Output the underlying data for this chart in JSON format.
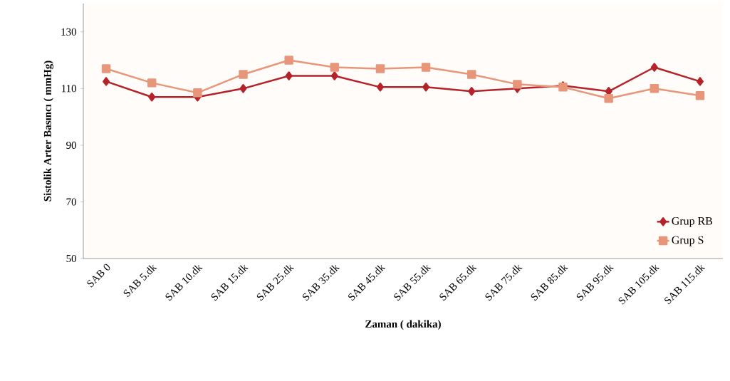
{
  "chart_data": {
    "type": "line",
    "xlabel": "Zaman ( dakika)",
    "ylabel": "Sistolik Arter Basıncı ( mmHg)",
    "categories": [
      "SAB 0",
      "SAB 5.dk",
      "SAB 10.dk",
      "SAB 15.dk",
      "SAB 25.dk",
      "SAB 35.dk",
      "SAB 45.dk",
      "SAB 55.dk",
      "SAB 65.dk",
      "SAB 75.dk",
      "SAB 85.dk",
      "SAB 95.dk",
      "SAB 105.dk",
      "SAB 115.dk"
    ],
    "series": [
      {
        "name": "Grup RB",
        "color": "#b5232a",
        "marker": "diamond",
        "values": [
          112.5,
          107,
          107,
          110,
          114.5,
          114.5,
          110.5,
          110.5,
          109,
          110,
          111,
          109,
          117.5,
          112.5
        ]
      },
      {
        "name": "Grup S",
        "color": "#e8967a",
        "marker": "square",
        "values": [
          117,
          112,
          108.5,
          115,
          120,
          117.5,
          117,
          117.5,
          115,
          111.5,
          110.5,
          106.5,
          110,
          107.5
        ]
      }
    ],
    "ylim": [
      50,
      140
    ],
    "yticks": [
      50,
      70,
      90,
      110,
      130
    ],
    "grid": false,
    "legend": "bottom right",
    "line_style": "solid"
  }
}
